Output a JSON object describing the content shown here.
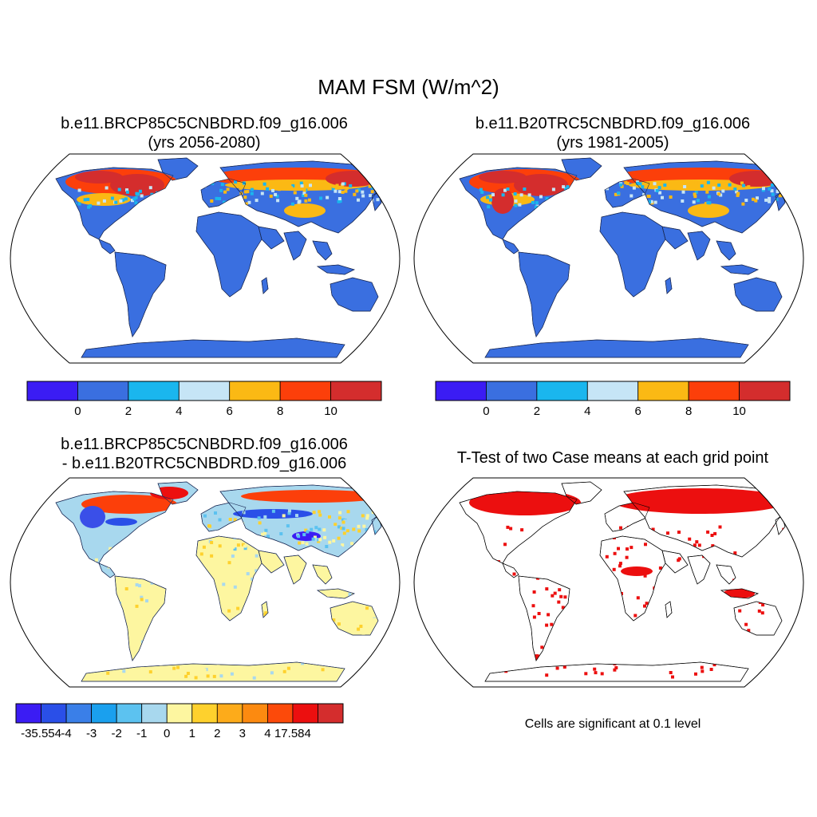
{
  "main_title": "MAM FSM (W/m^2)",
  "panels": [
    {
      "title_line1": "b.e11.BRCP85C5CNBDRD.f09_g16.006",
      "title_line2": "(yrs 2056-2080)"
    },
    {
      "title_line1": "b.e11.B20TRC5CNBDRD.f09_g16.006",
      "title_line2": "(yrs 1981-2005)"
    },
    {
      "title_line1": "b.e11.BRCP85C5CNBDRD.f09_g16.006",
      "title_line2": "- b.e11.B20TRC5CNBDRD.f09_g16.006"
    },
    {
      "title_line1": "T-Test of two Case means at each grid point",
      "title_line2": ""
    }
  ],
  "colorbar_abs": {
    "colors": [
      "#3b1cf4",
      "#3a6fe0",
      "#1ab6ee",
      "#c6e5f6",
      "#fbb914",
      "#fc3f0a",
      "#d42d2d"
    ],
    "labels": [
      "0",
      "2",
      "4",
      "6",
      "8",
      "10"
    ]
  },
  "colorbar_diff": {
    "colors": [
      "#3b1cf4",
      "#2a4fe8",
      "#3a7fe8",
      "#1aa0ee",
      "#5cc2f0",
      "#a8d8ee",
      "#fdf6a0",
      "#fed12d",
      "#fdab1a",
      "#fc8a10",
      "#fc4a0a",
      "#ec0f0f",
      "#d42d2d"
    ],
    "labels": [
      "-35.554",
      "-4",
      "-3",
      "-2",
      "-1",
      "0",
      "1",
      "2",
      "3",
      "4",
      "17.584"
    ]
  },
  "significance_note": "Cells are significant at 0.1 level",
  "style": {
    "land_blue": "#3a6fe0",
    "warm_red": "#d42d2d",
    "warm_orange": "#fc3f0a",
    "warm_yellow": "#fbb914",
    "light_blue": "#c6e5f6",
    "diff_yellow": "#fdf6a0",
    "diff_lightblue": "#a8d8ee",
    "sig_red": "#ec0f0f",
    "projection": "Robinson"
  }
}
